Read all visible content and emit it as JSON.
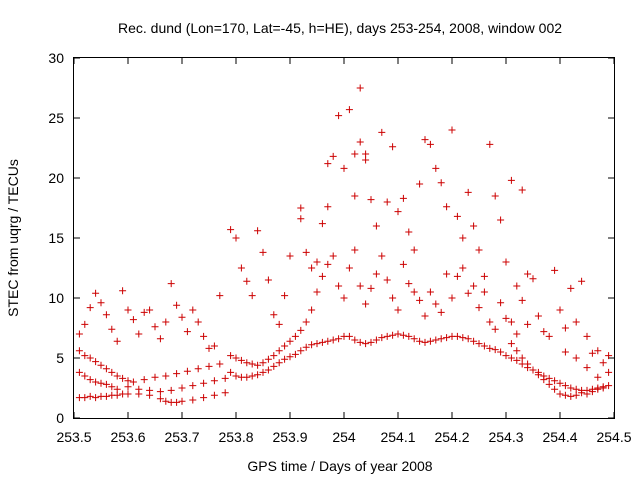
{
  "chart_data": {
    "type": "scatter",
    "title": "Rec. dund (Lon=170, Lat=-45, h=HE), days 253-254, 2008, window 002",
    "xlabel": "GPS time / Days of year 2008",
    "ylabel": "STEC from uqrg / TECUs",
    "xlim": [
      253.5,
      254.5
    ],
    "ylim": [
      0,
      30
    ],
    "xticks": [
      "253.5",
      "253.6",
      "253.7",
      "253.8",
      "253.9",
      "254",
      "254.1",
      "254.2",
      "254.3",
      "254.4",
      "254.5"
    ],
    "yticks": [
      "0",
      "5",
      "10",
      "15",
      "20",
      "25",
      "30"
    ],
    "grid": false,
    "legend": "none",
    "marker": "+",
    "color": "#cc0000",
    "points": [
      [
        253.51,
        1.7
      ],
      [
        253.52,
        1.7
      ],
      [
        253.53,
        1.8
      ],
      [
        253.54,
        1.7
      ],
      [
        253.55,
        1.8
      ],
      [
        253.56,
        1.8
      ],
      [
        253.57,
        1.9
      ],
      [
        253.58,
        1.9
      ],
      [
        253.59,
        2.0
      ],
      [
        253.6,
        2.0
      ],
      [
        253.62,
        2.0
      ],
      [
        253.64,
        1.9
      ],
      [
        253.66,
        1.6
      ],
      [
        253.67,
        1.4
      ],
      [
        253.68,
        1.3
      ],
      [
        253.69,
        1.3
      ],
      [
        253.7,
        1.4
      ],
      [
        253.72,
        1.5
      ],
      [
        253.74,
        1.7
      ],
      [
        253.76,
        1.9
      ],
      [
        253.78,
        2.1
      ],
      [
        253.51,
        3.8
      ],
      [
        253.52,
        3.5
      ],
      [
        253.53,
        3.2
      ],
      [
        253.54,
        3.0
      ],
      [
        253.55,
        2.9
      ],
      [
        253.56,
        2.8
      ],
      [
        253.57,
        2.6
      ],
      [
        253.58,
        2.4
      ],
      [
        253.6,
        2.6
      ],
      [
        253.62,
        2.4
      ],
      [
        253.64,
        2.3
      ],
      [
        253.66,
        2.2
      ],
      [
        253.68,
        2.3
      ],
      [
        253.7,
        2.5
      ],
      [
        253.72,
        2.7
      ],
      [
        253.74,
        2.9
      ],
      [
        253.76,
        3.1
      ],
      [
        253.78,
        3.3
      ],
      [
        253.51,
        5.6
      ],
      [
        253.52,
        5.2
      ],
      [
        253.53,
        5.0
      ],
      [
        253.54,
        4.7
      ],
      [
        253.55,
        4.4
      ],
      [
        253.56,
        4.1
      ],
      [
        253.57,
        3.8
      ],
      [
        253.58,
        3.5
      ],
      [
        253.59,
        3.3
      ],
      [
        253.6,
        3.1
      ],
      [
        253.61,
        3.0
      ],
      [
        253.63,
        3.2
      ],
      [
        253.65,
        3.4
      ],
      [
        253.67,
        3.5
      ],
      [
        253.69,
        3.7
      ],
      [
        253.71,
        3.9
      ],
      [
        253.73,
        4.1
      ],
      [
        253.75,
        4.3
      ],
      [
        253.77,
        4.5
      ],
      [
        253.51,
        7.0
      ],
      [
        253.52,
        7.8
      ],
      [
        253.53,
        9.2
      ],
      [
        253.54,
        10.4
      ],
      [
        253.55,
        9.6
      ],
      [
        253.56,
        8.6
      ],
      [
        253.57,
        7.4
      ],
      [
        253.58,
        6.4
      ],
      [
        253.59,
        10.6
      ],
      [
        253.6,
        9.0
      ],
      [
        253.61,
        8.2
      ],
      [
        253.62,
        7.0
      ],
      [
        253.63,
        8.8
      ],
      [
        253.64,
        9.0
      ],
      [
        253.65,
        7.6
      ],
      [
        253.66,
        6.6
      ],
      [
        253.67,
        8.0
      ],
      [
        253.68,
        11.2
      ],
      [
        253.69,
        9.4
      ],
      [
        253.7,
        8.4
      ],
      [
        253.71,
        7.2
      ],
      [
        253.72,
        9.0
      ],
      [
        253.73,
        8.0
      ],
      [
        253.74,
        6.8
      ],
      [
        253.75,
        5.8
      ],
      [
        253.76,
        6.0
      ],
      [
        253.77,
        10.2
      ],
      [
        253.79,
        15.7
      ],
      [
        253.8,
        15.0
      ],
      [
        253.81,
        12.5
      ],
      [
        253.82,
        11.4
      ],
      [
        253.83,
        10.2
      ],
      [
        253.84,
        15.6
      ],
      [
        253.85,
        13.8
      ],
      [
        253.86,
        11.5
      ],
      [
        253.87,
        8.6
      ],
      [
        253.88,
        7.8
      ],
      [
        253.89,
        10.2
      ],
      [
        253.9,
        13.5
      ],
      [
        253.79,
        3.8
      ],
      [
        253.8,
        3.5
      ],
      [
        253.81,
        3.4
      ],
      [
        253.82,
        3.4
      ],
      [
        253.83,
        3.5
      ],
      [
        253.84,
        3.6
      ],
      [
        253.85,
        3.8
      ],
      [
        253.86,
        4.0
      ],
      [
        253.87,
        4.3
      ],
      [
        253.88,
        4.6
      ],
      [
        253.89,
        4.9
      ],
      [
        253.9,
        5.1
      ],
      [
        253.91,
        5.3
      ],
      [
        253.92,
        5.6
      ],
      [
        253.93,
        5.9
      ],
      [
        253.94,
        6.1
      ],
      [
        253.95,
        6.2
      ],
      [
        253.96,
        6.3
      ],
      [
        253.97,
        6.4
      ],
      [
        253.98,
        6.5
      ],
      [
        253.99,
        6.6
      ],
      [
        254.0,
        6.8
      ],
      [
        253.79,
        5.2
      ],
      [
        253.8,
        5.0
      ],
      [
        253.81,
        4.8
      ],
      [
        253.82,
        4.6
      ],
      [
        253.83,
        4.5
      ],
      [
        253.84,
        4.4
      ],
      [
        253.85,
        4.6
      ],
      [
        253.86,
        4.9
      ],
      [
        253.87,
        5.2
      ],
      [
        253.88,
        5.6
      ],
      [
        253.89,
        6.0
      ],
      [
        253.9,
        6.4
      ],
      [
        253.91,
        6.8
      ],
      [
        253.92,
        7.3
      ],
      [
        253.93,
        8.0
      ],
      [
        253.94,
        9.0
      ],
      [
        253.95,
        10.5
      ],
      [
        253.96,
        11.8
      ],
      [
        253.97,
        12.8
      ],
      [
        253.98,
        13.5
      ],
      [
        253.99,
        11.0
      ],
      [
        253.92,
        17.5
      ],
      [
        253.92,
        16.6
      ],
      [
        253.93,
        13.8
      ],
      [
        253.94,
        12.5
      ],
      [
        253.95,
        13.0
      ],
      [
        253.96,
        16.2
      ],
      [
        253.97,
        17.6
      ],
      [
        253.97,
        21.2
      ],
      [
        253.98,
        21.8
      ],
      [
        253.99,
        25.2
      ],
      [
        254.0,
        20.8
      ],
      [
        254.01,
        25.7
      ],
      [
        254.02,
        22.0
      ],
      [
        254.02,
        18.5
      ],
      [
        254.03,
        27.5
      ],
      [
        254.03,
        23.0
      ],
      [
        254.04,
        21.5
      ],
      [
        254.04,
        22.0
      ],
      [
        254.05,
        18.2
      ],
      [
        254.06,
        16.0
      ],
      [
        254.07,
        23.8
      ],
      [
        254.08,
        18.0
      ],
      [
        254.09,
        22.6
      ],
      [
        254.1,
        17.2
      ],
      [
        254.11,
        18.3
      ],
      [
        254.12,
        15.5
      ],
      [
        254.13,
        14.0
      ],
      [
        254.14,
        19.5
      ],
      [
        254.15,
        23.2
      ],
      [
        254.16,
        22.8
      ],
      [
        254.17,
        20.8
      ],
      [
        254.18,
        19.6
      ],
      [
        254.19,
        17.6
      ],
      [
        254.2,
        24.0
      ],
      [
        254.21,
        16.8
      ],
      [
        254.22,
        15.0
      ],
      [
        254.23,
        18.8
      ],
      [
        254.24,
        16.0
      ],
      [
        254.25,
        14.0
      ],
      [
        254.26,
        11.8
      ],
      [
        254.27,
        22.8
      ],
      [
        254.28,
        18.5
      ],
      [
        254.29,
        16.5
      ],
      [
        254.3,
        13.0
      ],
      [
        254.31,
        19.8
      ],
      [
        254.32,
        11.0
      ],
      [
        254.33,
        19.0
      ],
      [
        254.34,
        12.0
      ],
      [
        254.0,
        10.0
      ],
      [
        254.01,
        12.5
      ],
      [
        254.02,
        14.0
      ],
      [
        254.03,
        11.0
      ],
      [
        254.04,
        9.5
      ],
      [
        254.05,
        10.8
      ],
      [
        254.06,
        12.0
      ],
      [
        254.07,
        13.5
      ],
      [
        254.08,
        11.5
      ],
      [
        254.09,
        10.0
      ],
      [
        254.1,
        9.0
      ],
      [
        254.11,
        12.8
      ],
      [
        254.12,
        11.2
      ],
      [
        254.13,
        10.5
      ],
      [
        254.14,
        9.8
      ],
      [
        254.15,
        8.5
      ],
      [
        254.16,
        10.5
      ],
      [
        254.17,
        9.5
      ],
      [
        254.18,
        8.8
      ],
      [
        254.19,
        12.0
      ],
      [
        254.2,
        10.0
      ],
      [
        254.21,
        11.8
      ],
      [
        254.22,
        12.5
      ],
      [
        254.23,
        10.4
      ],
      [
        254.24,
        11.0
      ],
      [
        254.25,
        9.2
      ],
      [
        254.26,
        10.5
      ],
      [
        254.27,
        8.0
      ],
      [
        254.28,
        7.4
      ],
      [
        254.29,
        9.6
      ],
      [
        254.3,
        8.3
      ],
      [
        254.01,
        6.8
      ],
      [
        254.02,
        6.5
      ],
      [
        254.03,
        6.3
      ],
      [
        254.04,
        6.2
      ],
      [
        254.05,
        6.3
      ],
      [
        254.06,
        6.5
      ],
      [
        254.07,
        6.7
      ],
      [
        254.08,
        6.8
      ],
      [
        254.09,
        6.9
      ],
      [
        254.1,
        7.0
      ],
      [
        254.11,
        6.9
      ],
      [
        254.12,
        6.8
      ],
      [
        254.13,
        6.6
      ],
      [
        254.14,
        6.4
      ],
      [
        254.15,
        6.3
      ],
      [
        254.16,
        6.4
      ],
      [
        254.17,
        6.5
      ],
      [
        254.18,
        6.6
      ],
      [
        254.19,
        6.7
      ],
      [
        254.2,
        6.8
      ],
      [
        254.21,
        6.8
      ],
      [
        254.22,
        6.7
      ],
      [
        254.23,
        6.6
      ],
      [
        254.24,
        6.4
      ],
      [
        254.25,
        6.2
      ],
      [
        254.26,
        6.0
      ],
      [
        254.27,
        5.8
      ],
      [
        254.28,
        5.7
      ],
      [
        254.29,
        5.5
      ],
      [
        254.3,
        5.2
      ],
      [
        254.31,
        5.0
      ],
      [
        254.32,
        4.8
      ],
      [
        254.33,
        4.5
      ],
      [
        254.34,
        4.2
      ],
      [
        254.35,
        4.0
      ],
      [
        254.36,
        3.8
      ],
      [
        254.37,
        3.5
      ],
      [
        254.38,
        3.3
      ],
      [
        254.39,
        3.1
      ],
      [
        254.4,
        2.9
      ],
      [
        254.41,
        2.7
      ],
      [
        254.42,
        2.5
      ],
      [
        254.43,
        2.4
      ],
      [
        254.44,
        2.3
      ],
      [
        254.45,
        2.3
      ],
      [
        254.46,
        2.4
      ],
      [
        254.47,
        2.5
      ],
      [
        254.48,
        2.6
      ],
      [
        254.49,
        2.7
      ],
      [
        254.31,
        6.2
      ],
      [
        254.32,
        5.6
      ],
      [
        254.33,
        5.0
      ],
      [
        254.34,
        4.5
      ],
      [
        254.35,
        4.0
      ],
      [
        254.36,
        3.6
      ],
      [
        254.37,
        3.2
      ],
      [
        254.38,
        2.8
      ],
      [
        254.39,
        2.4
      ],
      [
        254.4,
        2.0
      ],
      [
        254.41,
        1.9
      ],
      [
        254.42,
        1.8
      ],
      [
        254.43,
        1.9
      ],
      [
        254.44,
        2.1
      ],
      [
        254.45,
        2.0
      ],
      [
        254.46,
        2.2
      ],
      [
        254.47,
        2.4
      ],
      [
        254.48,
        2.5
      ],
      [
        254.31,
        8.0
      ],
      [
        254.32,
        7.0
      ],
      [
        254.33,
        9.8
      ],
      [
        254.34,
        7.8
      ],
      [
        254.35,
        11.6
      ],
      [
        254.36,
        8.5
      ],
      [
        254.37,
        7.2
      ],
      [
        254.38,
        6.8
      ],
      [
        254.39,
        12.3
      ],
      [
        254.4,
        9.0
      ],
      [
        254.41,
        7.5
      ],
      [
        254.42,
        10.8
      ],
      [
        254.43,
        8.0
      ],
      [
        254.44,
        11.4
      ],
      [
        254.45,
        6.8
      ],
      [
        254.46,
        5.4
      ],
      [
        254.47,
        5.6
      ],
      [
        254.48,
        4.6
      ],
      [
        254.49,
        5.2
      ],
      [
        254.41,
        5.5
      ],
      [
        254.43,
        5.0
      ],
      [
        254.45,
        4.2
      ],
      [
        254.47,
        3.4
      ],
      [
        254.49,
        3.8
      ]
    ]
  }
}
